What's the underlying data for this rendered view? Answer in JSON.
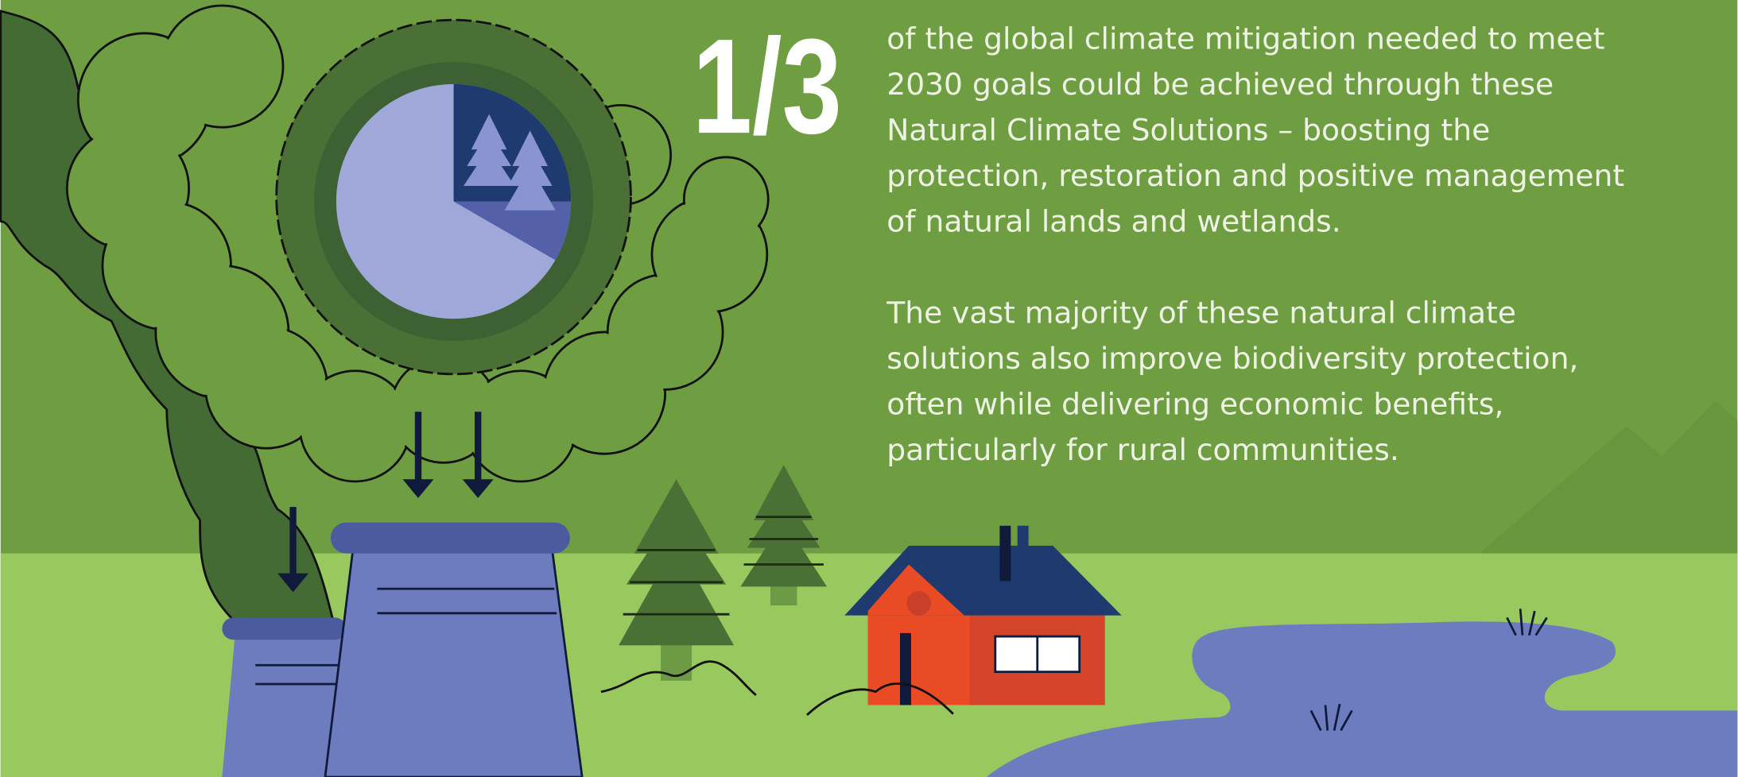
{
  "headline": "1/3",
  "paragraphs": [
    [
      "of the global climate mitigation needed to meet",
      "2030 goals could be achieved through these",
      "Natural Climate Solutions – boosting the",
      "protection, restoration and positive management",
      "of natural lands and wetlands."
    ],
    [
      "The vast majority of these natural climate",
      "solutions also improve biodiversity protection,",
      "often while delivering economic benefits,",
      "particularly for rural communities."
    ]
  ]
}
